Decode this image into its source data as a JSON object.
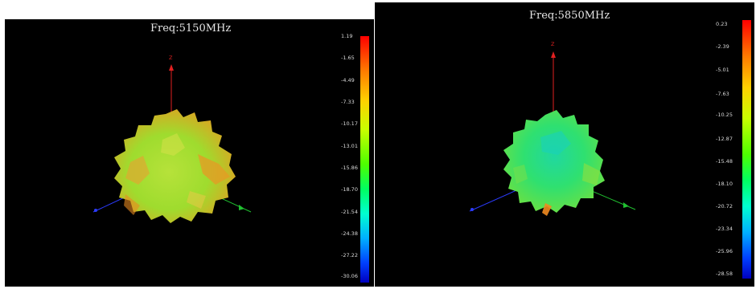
{
  "panels": [
    {
      "title": "Freq:5150MHz",
      "axis_z_label": "Z",
      "scale_ticks": [
        "1.19",
        "-1.65",
        "-4.49",
        "-7.33",
        "-10.17",
        "-13.01",
        "-15.86",
        "-18.70",
        "-21.54",
        "-24.38",
        "-27.22",
        "-30.06"
      ],
      "pattern_color": "#9fe030"
    },
    {
      "title": "Freq:5850MHz",
      "axis_z_label": "Z",
      "scale_ticks": [
        "0.23",
        "-2.39",
        "-5.01",
        "-7.63",
        "-10.25",
        "-12.87",
        "-15.48",
        "-18.10",
        "-20.72",
        "-23.34",
        "-25.96",
        "-28.58"
      ],
      "pattern_color": "#3fe07a"
    }
  ],
  "colors": {
    "background": "#000000",
    "z_axis": "#e02020",
    "x_axis": "#2b3bff",
    "y_axis": "#20c030"
  }
}
